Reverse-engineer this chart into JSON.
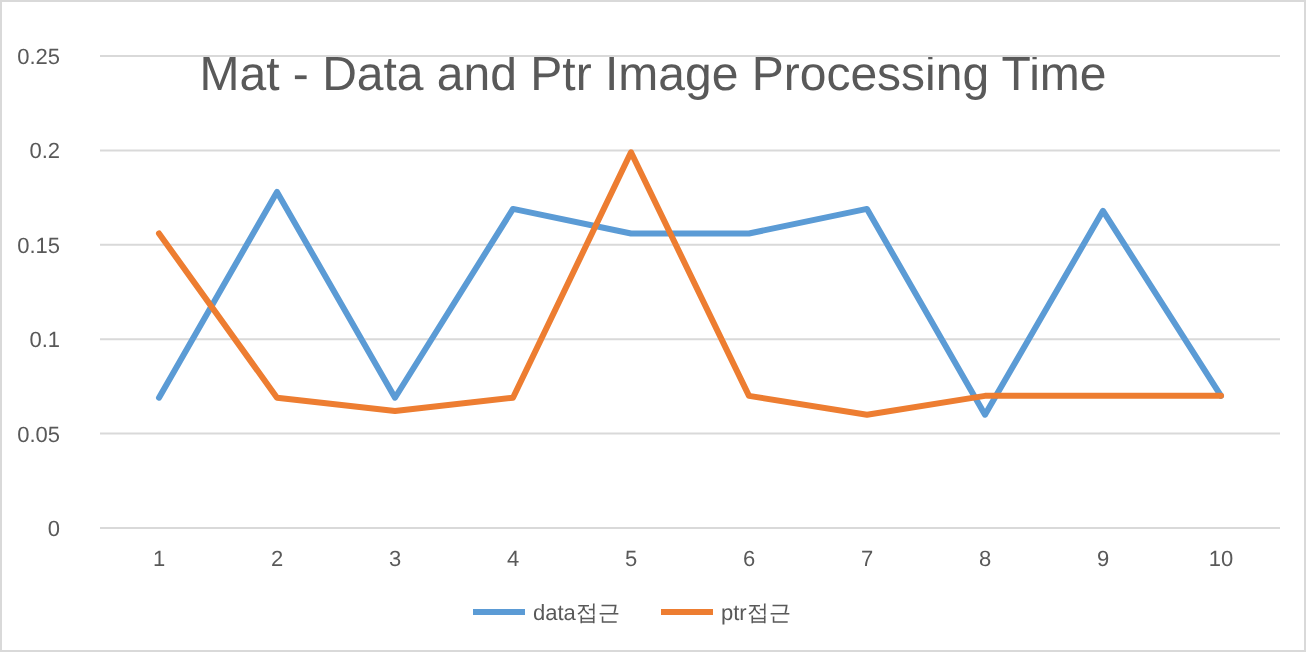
{
  "chart_data": {
    "type": "line",
    "title": "Mat - Data and Ptr Image Processing Time",
    "categories": [
      "1",
      "2",
      "3",
      "4",
      "5",
      "6",
      "7",
      "8",
      "9",
      "10"
    ],
    "series": [
      {
        "name": "data접근",
        "color": "#5b9bd5",
        "values": [
          0.069,
          0.178,
          0.069,
          0.169,
          0.156,
          0.156,
          0.169,
          0.06,
          0.168,
          0.07
        ]
      },
      {
        "name": "ptr접근",
        "color": "#ed7d31",
        "values": [
          0.156,
          0.069,
          0.062,
          0.069,
          0.199,
          0.07,
          0.06,
          0.07,
          0.07,
          0.07
        ]
      }
    ],
    "ylim": [
      0,
      0.25
    ],
    "yticks": [
      0,
      0.05,
      0.1,
      0.15,
      0.2,
      0.25
    ],
    "grid": "y",
    "legend": "bottom",
    "marker": "none",
    "line_style": "solid"
  }
}
